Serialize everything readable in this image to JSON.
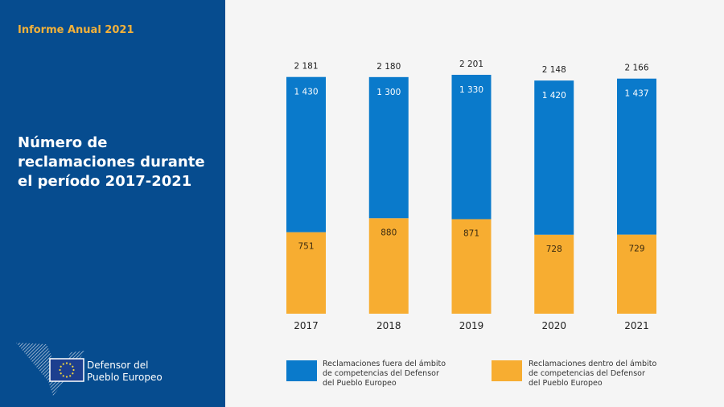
{
  "sidebar": {
    "report_label": "Informe Anual 2021",
    "title_lines": [
      "Número de",
      "reclamaciones durante",
      "el período 2017-2021"
    ],
    "logo": {
      "icon": "european-ombudsman-logo-icon",
      "flag_icon": "eu-flag-icon",
      "text_lines": [
        "Defensor del",
        "Pueblo Europeo"
      ]
    }
  },
  "colors": {
    "sidebar_bg": "#064c8f",
    "accent": "#f2b13a",
    "outside": "#0a7acb",
    "inside": "#f7ad31"
  },
  "chart_data": {
    "type": "bar",
    "stacked": true,
    "title": "Número de reclamaciones durante el período 2017-2021",
    "categories": [
      "2017",
      "2018",
      "2019",
      "2020",
      "2021"
    ],
    "series": [
      {
        "name": "Reclamaciones dentro del ámbito de competencias del Defensor del Pueblo Europeo",
        "values": [
          751,
          880,
          871,
          728,
          729
        ],
        "labels": [
          "751",
          "880",
          "871",
          "728",
          "729"
        ],
        "color": "#f7ad31"
      },
      {
        "name": "Reclamaciones fuera del ámbito de competencias del Defensor del Pueblo Europeo",
        "values": [
          1430,
          1300,
          1330,
          1420,
          1437
        ],
        "labels": [
          "1 430",
          "1 300",
          "1 330",
          "1 420",
          "1 437"
        ],
        "color": "#0a7acb"
      }
    ],
    "totals": [
      2181,
      2180,
      2201,
      2148,
      2166
    ],
    "total_labels": [
      "2 181",
      "2 180",
      "2 201",
      "2 148",
      "2 166"
    ],
    "xlabel": "",
    "ylabel": "",
    "ylim": [
      0,
      2201
    ],
    "grid": false,
    "legend": {
      "position": "bottom",
      "items": [
        {
          "lines": [
            "Reclamaciones fuera del ámbito",
            "de competencias del Defensor",
            "del Pueblo Europeo"
          ],
          "color": "#0a7acb"
        },
        {
          "lines": [
            "Reclamaciones dentro del ámbito",
            "de competencias del Defensor",
            "del Pueblo Europeo"
          ],
          "color": "#f7ad31"
        }
      ]
    }
  }
}
